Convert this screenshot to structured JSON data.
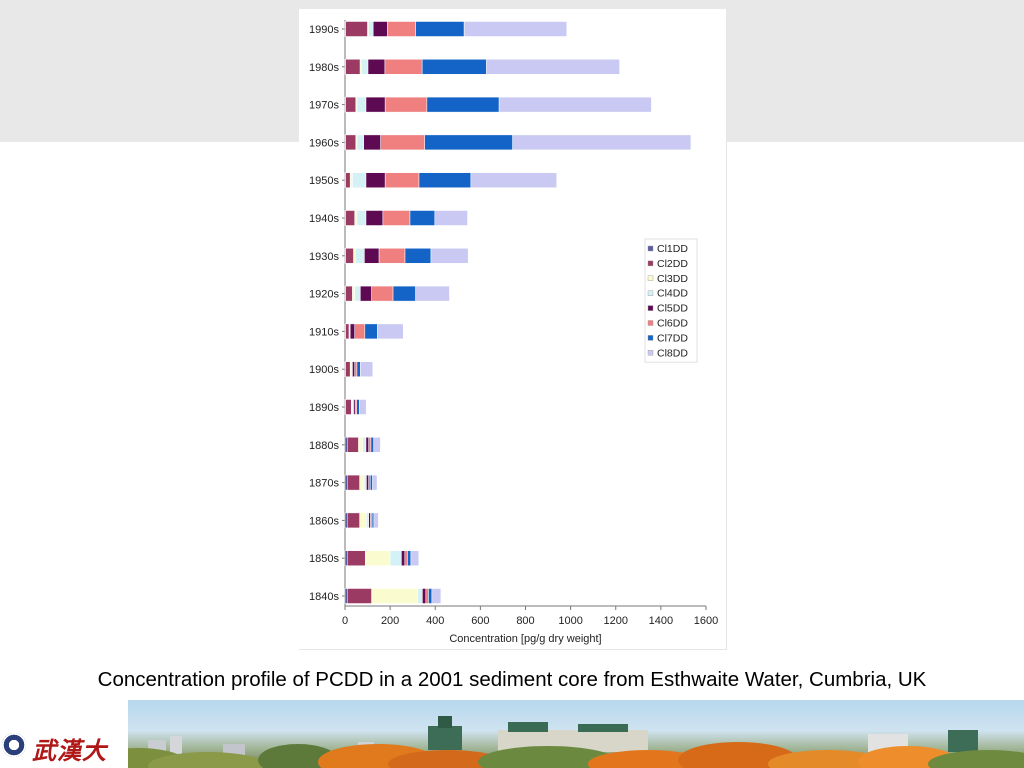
{
  "caption": "Concentration profile of PCDD in a 2001 sediment core from Esthwaite Water, Cumbria, UK",
  "footer": {
    "logo_text": "武漢大學"
  },
  "chart_data": {
    "type": "bar",
    "orientation": "horizontal",
    "stacked": true,
    "categories": [
      "1990s",
      "1980s",
      "1970s",
      "1960s",
      "1950s",
      "1940s",
      "1930s",
      "1920s",
      "1910s",
      "1900s",
      "1890s",
      "1880s",
      "1870s",
      "1860s",
      "1850s",
      "1840s"
    ],
    "xlabel": "Concentration [pg/g dry weight]",
    "ylabel": "",
    "xlim": [
      0,
      1600
    ],
    "xticks": [
      0,
      200,
      400,
      600,
      800,
      1000,
      1200,
      1400,
      1600
    ],
    "grid": false,
    "legend_position": "right",
    "series": [
      {
        "name": "Cl1DD",
        "color": "#5b5da4",
        "values": [
          3,
          3,
          3,
          3,
          3,
          3,
          3,
          3,
          3,
          3,
          3,
          10,
          10,
          10,
          10,
          10
        ]
      },
      {
        "name": "Cl2DD",
        "color": "#9b3b63",
        "values": [
          97,
          64,
          45,
          45,
          20,
          40,
          35,
          30,
          15,
          20,
          25,
          50,
          55,
          55,
          80,
          108
        ]
      },
      {
        "name": "Cl3DD",
        "color": "#fbfbd0",
        "values": [
          5,
          5,
          5,
          5,
          10,
          10,
          8,
          10,
          5,
          5,
          5,
          18,
          20,
          30,
          110,
          205
        ]
      },
      {
        "name": "Cl4DD",
        "color": "#d4f1f6",
        "values": [
          20,
          30,
          40,
          30,
          60,
          40,
          40,
          25,
          0,
          5,
          5,
          15,
          10,
          10,
          50,
          20
        ]
      },
      {
        "name": "Cl5DD",
        "color": "#5e0a52",
        "values": [
          63,
          75,
          85,
          75,
          85,
          75,
          65,
          50,
          20,
          10,
          7,
          12,
          10,
          8,
          15,
          15
        ]
      },
      {
        "name": "Cl6DD",
        "color": "#f08080",
        "values": [
          125,
          165,
          185,
          195,
          150,
          120,
          115,
          95,
          45,
          10,
          7,
          10,
          7,
          7,
          12,
          12
        ]
      },
      {
        "name": "Cl7DD",
        "color": "#1464c8",
        "values": [
          215,
          285,
          320,
          390,
          230,
          110,
          115,
          100,
          55,
          15,
          12,
          12,
          10,
          8,
          15,
          15
        ]
      },
      {
        "name": "Cl8DD",
        "color": "#c9c9f3",
        "values": [
          455,
          590,
          675,
          790,
          380,
          145,
          165,
          150,
          115,
          55,
          30,
          30,
          20,
          20,
          35,
          40
        ]
      }
    ]
  }
}
